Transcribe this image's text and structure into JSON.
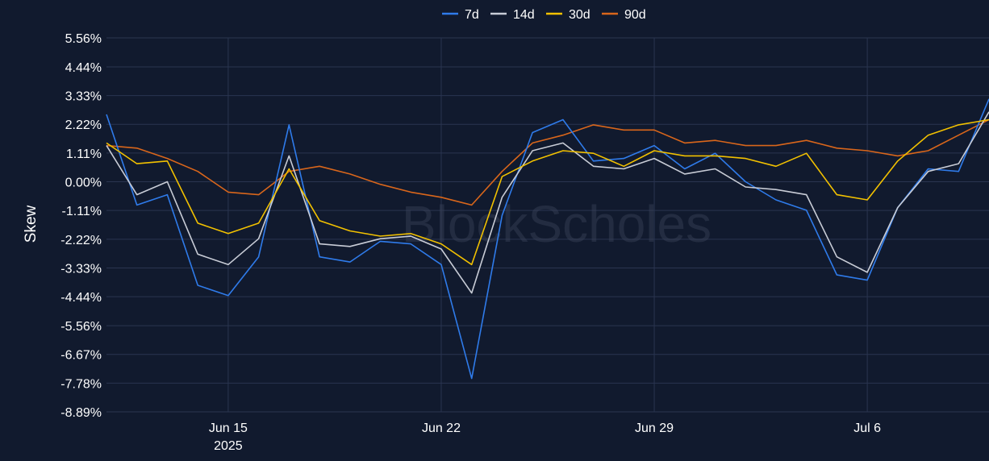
{
  "chart_data": {
    "type": "line",
    "ylabel": "Skew",
    "ylim": [
      -8.89,
      5.56
    ],
    "y_ticks": [
      "5.56%",
      "4.44%",
      "3.33%",
      "2.22%",
      "1.11%",
      "0.00%",
      "-1.11%",
      "-2.22%",
      "-3.33%",
      "-4.44%",
      "-5.56%",
      "-6.67%",
      "-7.78%",
      "-8.89%"
    ],
    "y_tick_values": [
      5.56,
      4.44,
      3.33,
      2.22,
      1.11,
      0.0,
      -1.11,
      -2.22,
      -3.33,
      -4.44,
      -5.56,
      -6.67,
      -7.78,
      -8.89
    ],
    "x_range": [
      "2025-06-11",
      "2025-07-10"
    ],
    "x_ticks": [
      {
        "date": "2025-06-15",
        "label": "Jun 15",
        "sublabel": "2025"
      },
      {
        "date": "2025-06-22",
        "label": "Jun 22",
        "sublabel": ""
      },
      {
        "date": "2025-06-29",
        "label": "Jun 29",
        "sublabel": ""
      },
      {
        "date": "2025-07-06",
        "label": "Jul 6",
        "sublabel": ""
      }
    ],
    "legend_position": "top-center",
    "grid": true,
    "watermark": "BlockScholes",
    "series": [
      {
        "name": "7d",
        "color": "#2f7bea",
        "x": [
          "2025-06-11",
          "2025-06-12",
          "2025-06-13",
          "2025-06-14",
          "2025-06-15",
          "2025-06-16",
          "2025-06-17",
          "2025-06-18",
          "2025-06-19",
          "2025-06-20",
          "2025-06-21",
          "2025-06-22",
          "2025-06-23",
          "2025-06-24",
          "2025-06-25",
          "2025-06-26",
          "2025-06-27",
          "2025-06-28",
          "2025-06-29",
          "2025-06-30",
          "2025-07-01",
          "2025-07-02",
          "2025-07-03",
          "2025-07-04",
          "2025-07-05",
          "2025-07-06",
          "2025-07-07",
          "2025-07-08",
          "2025-07-09",
          "2025-07-10"
        ],
        "values": [
          2.6,
          -0.9,
          -0.5,
          -4.0,
          -4.4,
          -2.9,
          2.2,
          -2.9,
          -3.1,
          -2.3,
          -2.4,
          -3.2,
          -7.6,
          -1.3,
          1.9,
          2.4,
          0.8,
          0.9,
          1.4,
          0.5,
          1.1,
          0.0,
          -0.7,
          -1.1,
          -3.6,
          -3.8,
          -1.0,
          0.5,
          0.4,
          3.2
        ]
      },
      {
        "name": "14d",
        "color": "#c8ccd6",
        "x": [
          "2025-06-11",
          "2025-06-12",
          "2025-06-13",
          "2025-06-14",
          "2025-06-15",
          "2025-06-16",
          "2025-06-17",
          "2025-06-18",
          "2025-06-19",
          "2025-06-20",
          "2025-06-21",
          "2025-06-22",
          "2025-06-23",
          "2025-06-24",
          "2025-06-25",
          "2025-06-26",
          "2025-06-27",
          "2025-06-28",
          "2025-06-29",
          "2025-06-30",
          "2025-07-01",
          "2025-07-02",
          "2025-07-03",
          "2025-07-04",
          "2025-07-05",
          "2025-07-06",
          "2025-07-07",
          "2025-07-08",
          "2025-07-09",
          "2025-07-10"
        ],
        "values": [
          1.4,
          -0.5,
          0.0,
          -2.8,
          -3.2,
          -2.2,
          1.0,
          -2.4,
          -2.5,
          -2.2,
          -2.1,
          -2.6,
          -4.3,
          -0.6,
          1.2,
          1.5,
          0.6,
          0.5,
          0.9,
          0.3,
          0.5,
          -0.2,
          -0.3,
          -0.5,
          -2.9,
          -3.5,
          -1.0,
          0.4,
          0.7,
          2.7
        ]
      },
      {
        "name": "30d",
        "color": "#f2c100",
        "x": [
          "2025-06-11",
          "2025-06-12",
          "2025-06-13",
          "2025-06-14",
          "2025-06-15",
          "2025-06-16",
          "2025-06-17",
          "2025-06-18",
          "2025-06-19",
          "2025-06-20",
          "2025-06-21",
          "2025-06-22",
          "2025-06-23",
          "2025-06-24",
          "2025-06-25",
          "2025-06-26",
          "2025-06-27",
          "2025-06-28",
          "2025-06-29",
          "2025-06-30",
          "2025-07-01",
          "2025-07-02",
          "2025-07-03",
          "2025-07-04",
          "2025-07-05",
          "2025-07-06",
          "2025-07-07",
          "2025-07-08",
          "2025-07-09",
          "2025-07-10"
        ],
        "values": [
          1.5,
          0.7,
          0.8,
          -1.6,
          -2.0,
          -1.6,
          0.5,
          -1.5,
          -1.9,
          -2.1,
          -2.0,
          -2.4,
          -3.2,
          0.2,
          0.8,
          1.2,
          1.1,
          0.6,
          1.2,
          1.0,
          1.0,
          0.9,
          0.6,
          1.1,
          -0.5,
          -0.7,
          0.8,
          1.8,
          2.2,
          2.4
        ]
      },
      {
        "name": "90d",
        "color": "#d9661b",
        "x": [
          "2025-06-11",
          "2025-06-12",
          "2025-06-13",
          "2025-06-14",
          "2025-06-15",
          "2025-06-16",
          "2025-06-17",
          "2025-06-18",
          "2025-06-19",
          "2025-06-20",
          "2025-06-21",
          "2025-06-22",
          "2025-06-23",
          "2025-06-24",
          "2025-06-25",
          "2025-06-26",
          "2025-06-27",
          "2025-06-28",
          "2025-06-29",
          "2025-06-30",
          "2025-07-01",
          "2025-07-02",
          "2025-07-03",
          "2025-07-04",
          "2025-07-05",
          "2025-07-06",
          "2025-07-07",
          "2025-07-08",
          "2025-07-09",
          "2025-07-10"
        ],
        "values": [
          1.4,
          1.3,
          0.9,
          0.4,
          -0.4,
          -0.5,
          0.4,
          0.6,
          0.3,
          -0.1,
          -0.4,
          -0.6,
          -0.9,
          0.4,
          1.5,
          1.8,
          2.2,
          2.0,
          2.0,
          1.5,
          1.6,
          1.4,
          1.4,
          1.6,
          1.3,
          1.2,
          1.0,
          1.2,
          1.8,
          2.4
        ]
      }
    ]
  }
}
